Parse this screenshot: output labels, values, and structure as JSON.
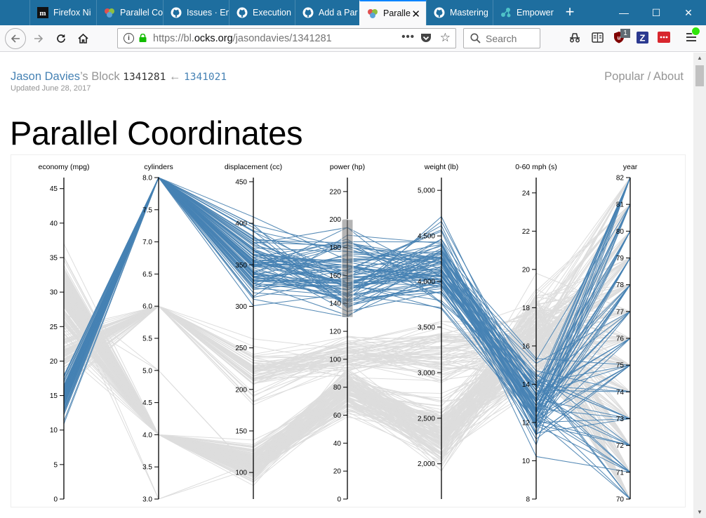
{
  "browser": {
    "tabs": [
      {
        "label": "Firefox Ni",
        "icon": "medium-icon",
        "active": false
      },
      {
        "label": "Parallel Co",
        "icon": "bl-ocks-icon",
        "active": false
      },
      {
        "label": "Issues · En",
        "icon": "github-icon",
        "active": false
      },
      {
        "label": "Execution",
        "icon": "github-icon",
        "active": false
      },
      {
        "label": "Add a Par",
        "icon": "github-icon",
        "active": false
      },
      {
        "label": "Paralle",
        "icon": "bl-ocks-icon",
        "active": true
      },
      {
        "label": "Mastering",
        "icon": "github-icon",
        "active": false
      },
      {
        "label": "Empower",
        "icon": "empower-icon",
        "active": false
      }
    ],
    "url_prefix": "https://bl.",
    "url_domain": "ocks.org",
    "url_path": "/jasondavies/1341281",
    "search_placeholder": "Search",
    "addon_badge": "1"
  },
  "page": {
    "author": "Jason Davies",
    "author_suffix": "’s Block",
    "block_id": "1341281",
    "arrow": "←",
    "parent_id": "1341021",
    "updated": "Updated June 28, 2017",
    "nav_popular": "Popular",
    "nav_sep": " / ",
    "nav_about": "About",
    "title": "Parallel Coordinates"
  },
  "colors": {
    "foreground": "#4682b4",
    "background_lines": "#dddddd",
    "accent_tab": "#0a84ff",
    "tabbar": "#1e6e9f"
  },
  "chart_data": {
    "type": "parallel-coordinates",
    "brush": {
      "dimension": "power (hp)",
      "range": [
        130,
        200
      ]
    },
    "dimensions": [
      {
        "name": "economy (mpg)",
        "ticks": [
          "0",
          "5",
          "10",
          "15",
          "20",
          "25",
          "30",
          "35",
          "40",
          "45"
        ],
        "range": [
          0,
          46.6
        ]
      },
      {
        "name": "cylinders",
        "ticks": [
          "3.0",
          "3.5",
          "4.0",
          "4.5",
          "5.0",
          "5.5",
          "6.0",
          "6.5",
          "7.0",
          "7.5",
          "8.0"
        ],
        "range": [
          3,
          8
        ]
      },
      {
        "name": "displacement (cc)",
        "ticks": [
          "100",
          "150",
          "200",
          "250",
          "300",
          "350",
          "400",
          "450"
        ],
        "range": [
          68,
          455
        ]
      },
      {
        "name": "power (hp)",
        "ticks": [
          "0",
          "20",
          "40",
          "60",
          "80",
          "100",
          "120",
          "140",
          "160",
          "180",
          "200",
          "220"
        ],
        "range": [
          0,
          230
        ]
      },
      {
        "name": "weight (lb)",
        "ticks": [
          "2,000",
          "2,500",
          "3,000",
          "3,500",
          "4,000",
          "4,500",
          "5,000"
        ],
        "range": [
          1613,
          5140
        ]
      },
      {
        "name": "0-60 mph (s)",
        "ticks": [
          "8",
          "10",
          "12",
          "14",
          "16",
          "18",
          "20",
          "22",
          "24"
        ],
        "range": [
          8,
          24.8
        ]
      },
      {
        "name": "year",
        "ticks": [
          "70",
          "71",
          "72",
          "73",
          "74",
          "75",
          "76",
          "77",
          "78",
          "79",
          "80",
          "81",
          "82"
        ],
        "range": [
          70,
          82
        ]
      }
    ]
  }
}
